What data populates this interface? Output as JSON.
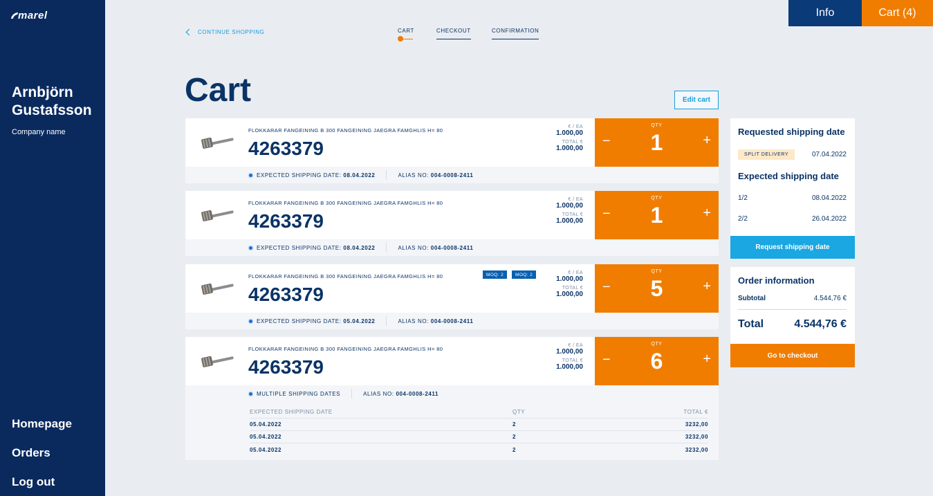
{
  "sidebar": {
    "logo": "marel",
    "user_name": "Arnbjörn Gustafsson",
    "company": "Company name",
    "nav": [
      "Homepage",
      "Orders",
      "Log out"
    ]
  },
  "topbar": {
    "info": "Info",
    "cart": "Cart (4)"
  },
  "header": {
    "continue": "CONTINUE SHOPPING",
    "steps": [
      "CART",
      "CHECKOUT",
      "CONFIRMATION"
    ]
  },
  "page": {
    "title": "Cart",
    "edit_cart": "Edit cart"
  },
  "labels": {
    "price_each": "€ / EA",
    "total": "TOTAL €",
    "qty": "QTY",
    "minus": "−",
    "plus": "+",
    "expected_shipping": "EXPECTED SHIPPING DATE:",
    "alias": "ALIAS NO:",
    "multiple": "MULTIPLE SHIPPING DATES"
  },
  "items": [
    {
      "desc": "FLOKKARAR FANGEINING B 300 FANGEINING JAEGRA FAMGHLIS H= 80",
      "part": "4263379",
      "price_each": "1.000,00",
      "total": "1.000,00",
      "qty": "1",
      "ship_date": "08.04.2022",
      "alias": "004-0008-2411"
    },
    {
      "desc": "FLOKKARAR FANGEINING B 300 FANGEINING JAEGRA FAMGHLIS H= 80",
      "part": "4263379",
      "price_each": "1.000,00",
      "total": "1.000,00",
      "qty": "1",
      "ship_date": "08.04.2022",
      "alias": "004-0008-2411"
    },
    {
      "desc": "FLOKKARAR FANGEINING B 300 FANGEINING JAEGRA FAMGHLIS H= 80",
      "part": "4263379",
      "price_each": "1.000,00",
      "total": "1.000,00",
      "qty": "5",
      "ship_date": "05.04.2022",
      "alias": "004-0008-2411",
      "moq": [
        "MOQ: 2",
        "MOQ: 2"
      ]
    },
    {
      "desc": "FLOKKARAR FANGEINING B 300 FANGEINING JAEGRA FAMGHLIS H= 80",
      "part": "4263379",
      "price_each": "1.000,00",
      "total": "1.000,00",
      "qty": "6",
      "alias": "004-0008-2411"
    }
  ],
  "ship_table": {
    "headers": [
      "EXPECTED SHIPPING DATE",
      "QTY",
      "TOTAL €"
    ],
    "rows": [
      [
        "05.04.2022",
        "2",
        "3232,00"
      ],
      [
        "05.04.2022",
        "2",
        "3232,00"
      ],
      [
        "05.04.2022",
        "2",
        "3232,00"
      ]
    ]
  },
  "shipping_panel": {
    "requested_title": "Requested shipping date",
    "split_label": "SPLIT DELIVERY",
    "requested_date": "07.04.2022",
    "expected_title": "Expected shipping date",
    "expected": [
      {
        "part": "1/2",
        "date": "08.04.2022"
      },
      {
        "part": "2/2",
        "date": "26.04.2022"
      }
    ],
    "button": "Request shipping date"
  },
  "order_panel": {
    "title": "Order information",
    "subtotal_label": "Subtotal",
    "subtotal": "4.544,76 €",
    "total_label": "Total",
    "total": "4.544,76 €",
    "button": "Go to checkout"
  },
  "colors": {
    "navy": "#0a2a5e",
    "orange": "#f07d00",
    "blue": "#1aa7e2",
    "bg": "#e9ecf1"
  }
}
